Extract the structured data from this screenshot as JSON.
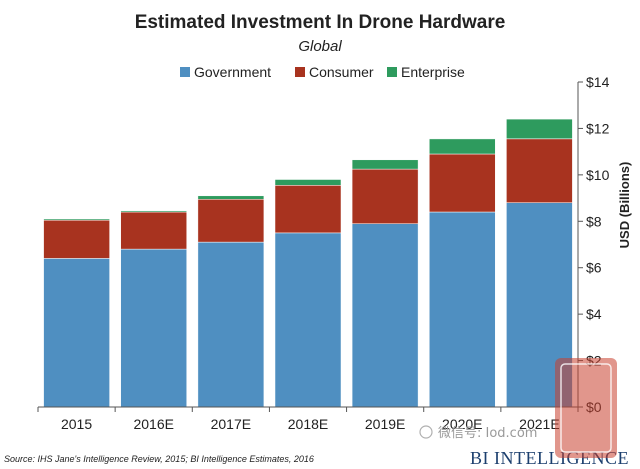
{
  "chart_data": {
    "type": "bar",
    "stacked": true,
    "title": "Estimated Investment In Drone Hardware",
    "subtitle": "Global",
    "categories": [
      "2015",
      "2016E",
      "2017E",
      "2018E",
      "2019E",
      "2020E",
      "2021E"
    ],
    "series": [
      {
        "name": "Government",
        "color": "#4f8fc1",
        "values": [
          6.4,
          6.8,
          7.1,
          7.5,
          7.9,
          8.4,
          8.8
        ]
      },
      {
        "name": "Consumer",
        "color": "#a8331f",
        "values": [
          1.65,
          1.6,
          1.85,
          2.05,
          2.35,
          2.5,
          2.75
        ]
      },
      {
        "name": "Enterprise",
        "color": "#2e9b5e",
        "values": [
          0.05,
          0.05,
          0.15,
          0.25,
          0.4,
          0.65,
          0.85
        ]
      }
    ],
    "ylabel": "USD (Billions)",
    "ylim": [
      0,
      14
    ],
    "yticks": [
      0,
      2,
      4,
      6,
      8,
      10,
      12,
      14
    ],
    "ytick_labels": [
      "$0",
      "$2",
      "$4",
      "$6",
      "$8",
      "$10",
      "$12",
      "$14"
    ],
    "y_axis_side": "right",
    "legend_position": "top",
    "grid": false
  },
  "source_note": "Source: IHS Jane's Intelligence Review, 2015; BI Intelligence Estimates, 2016",
  "brand_text": "BI INTELLIGENCE",
  "watermark_text": "微信号: Iod.com"
}
